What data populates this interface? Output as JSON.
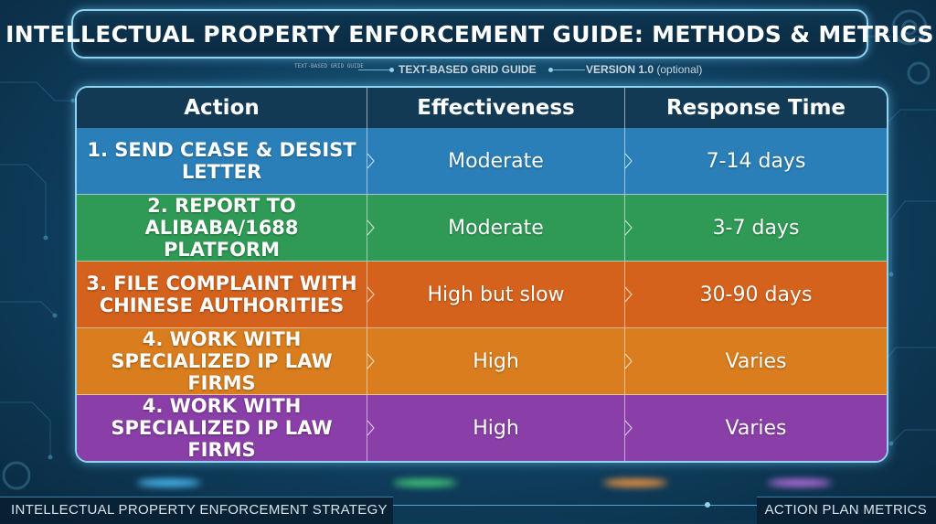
{
  "title": "INTELLECTUAL PROPERTY ENFORCEMENT GUIDE: METHODS & METRICS",
  "subline": {
    "tiny_text": "TEXT-BASED GRID GUIDE",
    "guide_label": "TEXT-BASED GRID GUIDE",
    "version_label": "VERSION 1.0",
    "version_note": "(optional)"
  },
  "table": {
    "headers": [
      "Action",
      "Effectiveness",
      "Response Time"
    ],
    "rows": [
      {
        "action": "1. SEND CEASE & DESIST LETTER",
        "effectiveness": "Moderate",
        "response_time": "7-14 days",
        "color": "#2a7fb8"
      },
      {
        "action": "2. REPORT TO ALIBABA/1688 PLATFORM",
        "effectiveness": "Moderate",
        "response_time": "3-7 days",
        "color": "#2f9a55"
      },
      {
        "action": "3. FILE COMPLAINT WITH CHINESE AUTHORITIES",
        "effectiveness": "High but slow",
        "response_time": "30-90 days",
        "color": "#d4621c"
      },
      {
        "action": "4. WORK WITH SPECIALIZED IP LAW FIRMS",
        "effectiveness": "High",
        "response_time": "Varies",
        "color": "#d97d1e"
      },
      {
        "action": "4. WORK WITH SPECIALIZED IP LAW FIRMS",
        "effectiveness": "High",
        "response_time": "Varies",
        "color": "#8a3fa8"
      }
    ]
  },
  "footer": {
    "left": "INTELLECTUAL PROPERTY ENFORCEMENT STRATEGY",
    "right": "ACTION PLAN METRICS"
  }
}
